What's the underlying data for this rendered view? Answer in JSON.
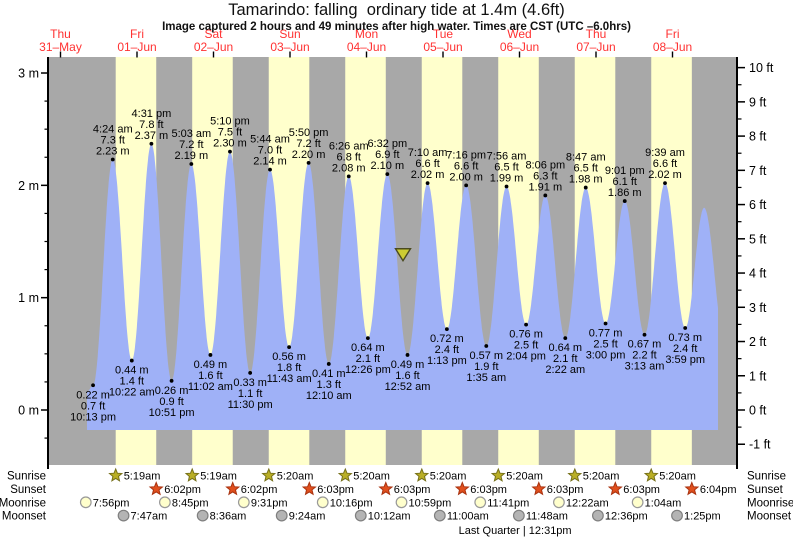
{
  "title": "Tamarindo: falling  ordinary tide at 1.4m (4.6ft)",
  "subtitle": "Image captured 2 hours and 49 minutes after high water. Times are CST (UTC –6.0hrs)",
  "colors": {
    "night_band": "#a8a8a8",
    "day_band": "#ffffcc",
    "tide_fill": "#9fb1f7",
    "day_label": "#ff3232",
    "axis": "#000000",
    "text": "#000000",
    "sunrise_star": "#b9ae25",
    "sunrise_star_border": "#76701a",
    "sunset_star": "#e04f1d",
    "sunset_star_border": "#a93310",
    "moonrise_fill": "#ffffcc",
    "moonrise_border": "#999999",
    "moonset_fill": "#b4b4b4",
    "moonset_border": "#7f7f7f",
    "marker_fill": "#cdcd32",
    "marker_border": "#4a4a20"
  },
  "chart_data": {
    "type": "area",
    "title": "Tamarindo: falling ordinary tide at 1.4m (4.6ft)",
    "subtitle": "Image captured 2 hours and 49 minutes after high water. Times are CST (UTC -6.0hrs)",
    "legend_position": "none",
    "grid": false,
    "y_axis_left": {
      "unit": "m",
      "major_ticks": [
        0,
        1,
        2,
        3
      ],
      "minor_step": 0.25
    },
    "y_axis_right": {
      "unit": "ft",
      "major_ticks": [
        -1,
        0,
        1,
        2,
        3,
        4,
        5,
        6,
        7,
        8,
        9,
        10
      ],
      "minor_step": 0.5
    },
    "days": [
      {
        "weekday": "Thu",
        "date": "31–May"
      },
      {
        "weekday": "Fri",
        "date": "01–Jun"
      },
      {
        "weekday": "Sat",
        "date": "02–Jun"
      },
      {
        "weekday": "Sun",
        "date": "03–Jun"
      },
      {
        "weekday": "Mon",
        "date": "04–Jun"
      },
      {
        "weekday": "Tue",
        "date": "05–Jun"
      },
      {
        "weekday": "Wed",
        "date": "06–Jun"
      },
      {
        "weekday": "Thu",
        "date": "07–Jun"
      },
      {
        "weekday": "Fri",
        "date": "08–Jun"
      }
    ],
    "tide_extremes": [
      {
        "day": 0,
        "time": "10:13 pm",
        "type": "L",
        "height_m": 0.22,
        "height_ft": 0.7
      },
      {
        "day": 1,
        "time": "4:24 am",
        "type": "H",
        "height_m": 2.23,
        "height_ft": 7.3
      },
      {
        "day": 1,
        "time": "10:22 am",
        "type": "L",
        "height_m": 0.44,
        "height_ft": 1.4
      },
      {
        "day": 1,
        "time": "4:31 pm",
        "type": "H",
        "height_m": 2.37,
        "height_ft": 7.8
      },
      {
        "day": 1,
        "time": "10:51 pm",
        "type": "L",
        "height_m": 0.26,
        "height_ft": 0.9
      },
      {
        "day": 2,
        "time": "5:03 am",
        "type": "H",
        "height_m": 2.19,
        "height_ft": 7.2
      },
      {
        "day": 2,
        "time": "11:02 am",
        "type": "L",
        "height_m": 0.49,
        "height_ft": 1.6
      },
      {
        "day": 2,
        "time": "5:10 pm",
        "type": "H",
        "height_m": 2.3,
        "height_ft": 7.5
      },
      {
        "day": 2,
        "time": "11:30 pm",
        "type": "L",
        "height_m": 0.33,
        "height_ft": 1.1
      },
      {
        "day": 3,
        "time": "5:44 am",
        "type": "H",
        "height_m": 2.14,
        "height_ft": 7.0
      },
      {
        "day": 3,
        "time": "11:43 am",
        "type": "L",
        "height_m": 0.56,
        "height_ft": 1.8
      },
      {
        "day": 3,
        "time": "5:50 pm",
        "type": "H",
        "height_m": 2.2,
        "height_ft": 7.2
      },
      {
        "day": 4,
        "time": "12:10 am",
        "type": "L",
        "height_m": 0.41,
        "height_ft": 1.3
      },
      {
        "day": 4,
        "time": "6:26 am",
        "type": "H",
        "height_m": 2.08,
        "height_ft": 6.8
      },
      {
        "day": 4,
        "time": "12:26 pm",
        "type": "L",
        "height_m": 0.64,
        "height_ft": 2.1
      },
      {
        "day": 4,
        "time": "6:32 pm",
        "type": "H",
        "height_m": 2.1,
        "height_ft": 6.9
      },
      {
        "day": 5,
        "time": "12:52 am",
        "type": "L",
        "height_m": 0.49,
        "height_ft": 1.6
      },
      {
        "day": 5,
        "time": "7:10 am",
        "type": "H",
        "height_m": 2.02,
        "height_ft": 6.6
      },
      {
        "day": 5,
        "time": "1:13 pm",
        "type": "L",
        "height_m": 0.72,
        "height_ft": 2.4
      },
      {
        "day": 5,
        "time": "7:16 pm",
        "type": "H",
        "height_m": 2.0,
        "height_ft": 6.6
      },
      {
        "day": 6,
        "time": "1:35 am",
        "type": "L",
        "height_m": 0.57,
        "height_ft": 1.9
      },
      {
        "day": 6,
        "time": "7:56 am",
        "type": "H",
        "height_m": 1.99,
        "height_ft": 6.5
      },
      {
        "day": 6,
        "time": "2:04 pm",
        "type": "L",
        "height_m": 0.76,
        "height_ft": 2.5
      },
      {
        "day": 6,
        "time": "8:06 pm",
        "type": "H",
        "height_m": 1.91,
        "height_ft": 6.3
      },
      {
        "day": 7,
        "time": "2:22 am",
        "type": "L",
        "height_m": 0.64,
        "height_ft": 2.1
      },
      {
        "day": 7,
        "time": "8:47 am",
        "type": "H",
        "height_m": 1.98,
        "height_ft": 6.5
      },
      {
        "day": 7,
        "time": "3:00 pm",
        "type": "L",
        "height_m": 0.77,
        "height_ft": 2.5
      },
      {
        "day": 7,
        "time": "9:01 pm",
        "type": "H",
        "height_m": 1.86,
        "height_ft": 6.1
      },
      {
        "day": 8,
        "time": "3:13 am",
        "type": "L",
        "height_m": 0.67,
        "height_ft": 2.2
      },
      {
        "day": 8,
        "time": "9:39 am",
        "type": "H",
        "height_m": 2.02,
        "height_ft": 6.6
      },
      {
        "day": 8,
        "time": "3:59 pm",
        "type": "L",
        "height_m": 0.73,
        "height_ft": 2.4
      }
    ],
    "curve_lead_in": {
      "day": 0,
      "time": "8:19 pm",
      "height_m": 0.16
    },
    "curve_tail": [
      {
        "day": 8,
        "time": "9:55 pm",
        "height_m": 1.8
      },
      {
        "day": 9,
        "time": "4:30 am",
        "height_m": 0.6
      }
    ],
    "current_level_marker": {
      "height_m": 1.4
    },
    "sun_moon": {
      "row_labels": [
        "Sunrise",
        "Sunset",
        "Moonrise",
        "Moonset"
      ],
      "sunrise": [
        {
          "day": 1,
          "time": "5:19am"
        },
        {
          "day": 2,
          "time": "5:19am"
        },
        {
          "day": 3,
          "time": "5:20am"
        },
        {
          "day": 4,
          "time": "5:20am"
        },
        {
          "day": 5,
          "time": "5:20am"
        },
        {
          "day": 6,
          "time": "5:20am"
        },
        {
          "day": 7,
          "time": "5:20am"
        },
        {
          "day": 8,
          "time": "5:20am"
        }
      ],
      "sunset": [
        {
          "day": 1,
          "time": "6:02pm"
        },
        {
          "day": 2,
          "time": "6:02pm"
        },
        {
          "day": 3,
          "time": "6:03pm"
        },
        {
          "day": 4,
          "time": "6:03pm"
        },
        {
          "day": 5,
          "time": "6:03pm"
        },
        {
          "day": 6,
          "time": "6:03pm"
        },
        {
          "day": 7,
          "time": "6:03pm"
        },
        {
          "day": 8,
          "time": "6:04pm"
        }
      ],
      "moonrise": [
        {
          "day": 0,
          "time": "7:56pm"
        },
        {
          "day": 1,
          "time": "8:45pm"
        },
        {
          "day": 2,
          "time": "9:31pm"
        },
        {
          "day": 3,
          "time": "10:16pm"
        },
        {
          "day": 4,
          "time": "10:59pm"
        },
        {
          "day": 5,
          "time": "11:41pm"
        },
        {
          "day": 7,
          "time": "12:22am"
        },
        {
          "day": 8,
          "time": "1:04am"
        }
      ],
      "moonset": [
        {
          "day": 1,
          "time": "7:47am"
        },
        {
          "day": 2,
          "time": "8:36am"
        },
        {
          "day": 3,
          "time": "9:24am"
        },
        {
          "day": 4,
          "time": "10:12am"
        },
        {
          "day": 5,
          "time": "11:00am"
        },
        {
          "day": 6,
          "time": "11:48am"
        },
        {
          "day": 7,
          "time": "12:36pm"
        },
        {
          "day": 8,
          "time": "1:25pm"
        }
      ],
      "moon_phase": {
        "label": "Last Quarter | 12:31pm",
        "day": 6,
        "time": "12:31pm"
      }
    }
  }
}
